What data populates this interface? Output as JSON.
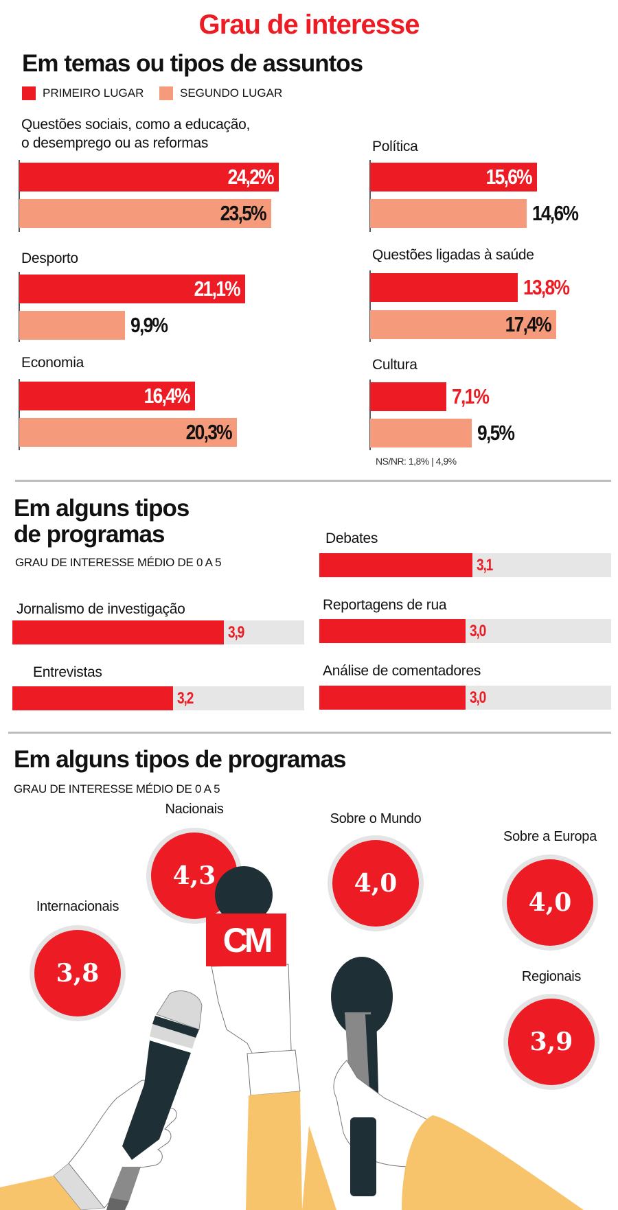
{
  "header": {
    "title": "Grau de interesse"
  },
  "colors": {
    "primary_red": "#ed1c24",
    "salmon": "#f59a7a",
    "track_gray": "#e6e6e6",
    "sleeve_yellow": "#f7c46c",
    "mic_dark": "#1e2f35"
  },
  "section1": {
    "heading": "Em temas ou tipos de assuntos",
    "legend": [
      {
        "label": "PRIMEIRO LUGAR",
        "color": "#ed1c24"
      },
      {
        "label": "SEGUNDO LUGAR",
        "color": "#f59a7a"
      }
    ],
    "note": "NS/NR: 1,8% | 4,9%"
  },
  "section2": {
    "heading_line1": "Em alguns tipos",
    "heading_line2": "de programas",
    "subtitle": "GRAU DE INTERESSE MÉDIO DE 0 A 5"
  },
  "section3": {
    "heading": "Em alguns tipos de programas",
    "subtitle": "GRAU DE INTERESSE MÉDIO DE 0 A 5",
    "logo_text": "CM"
  },
  "chart_data": [
    {
      "type": "bar",
      "orientation": "horizontal",
      "title": "Em temas ou tipos de assuntos",
      "unit": "%",
      "series": [
        {
          "name": "PRIMEIRO LUGAR",
          "values": [
            24.2,
            21.1,
            16.4,
            15.6,
            13.8,
            7.1
          ],
          "labels": [
            "24,2%",
            "21,1%",
            "16,4%",
            "15,6%",
            "13,8%",
            "7,1%"
          ]
        },
        {
          "name": "SEGUNDO LUGAR",
          "values": [
            23.5,
            9.9,
            20.3,
            14.6,
            17.4,
            9.5
          ],
          "labels": [
            "23,5%",
            "9,9%",
            "20,3%",
            "14,6%",
            "17,4%",
            "9,5%"
          ]
        }
      ],
      "categories": [
        "Questões sociais, como a  educação, o desemprego ou as reformas",
        "Desporto",
        "Economia",
        "Política",
        "Questões ligadas à saúde",
        "Cultura"
      ],
      "category_lines": [
        [
          "Questões sociais, como a  educação,",
          "o desemprego ou as reformas"
        ],
        [
          "Desporto"
        ],
        [
          "Economia"
        ],
        [
          "Política"
        ],
        [
          "Questões ligadas à saúde"
        ],
        [
          "Cultura"
        ]
      ],
      "annotation": "NS/NR: 1,8% | 4,9%"
    },
    {
      "type": "bar",
      "orientation": "horizontal",
      "title": "Em alguns tipos de programas",
      "subtitle": "GRAU DE INTERESSE MÉDIO DE 0 A 5",
      "categories": [
        "Jornalismo de investigação",
        "Entrevistas",
        "Debates",
        "Reportagens de rua",
        "Análise de comentadores"
      ],
      "values": [
        3.9,
        3.2,
        3.1,
        3.0,
        3.0
      ],
      "labels": [
        "3,9",
        "3,2",
        "3,1",
        "3,0",
        "3,0"
      ],
      "xlim": [
        0,
        5
      ]
    },
    {
      "type": "bubble",
      "title": "Em alguns tipos de programas",
      "subtitle": "GRAU DE INTERESSE MÉDIO DE 0 A 5",
      "categories": [
        "Nacionais",
        "Sobre o Mundo",
        "Sobre a Europa",
        "Internacionais",
        "Regionais"
      ],
      "values": [
        4.3,
        4.0,
        4.0,
        3.8,
        3.9
      ],
      "labels": [
        "4,3",
        "4,0",
        "4,0",
        "3,8",
        "3,9"
      ]
    }
  ]
}
